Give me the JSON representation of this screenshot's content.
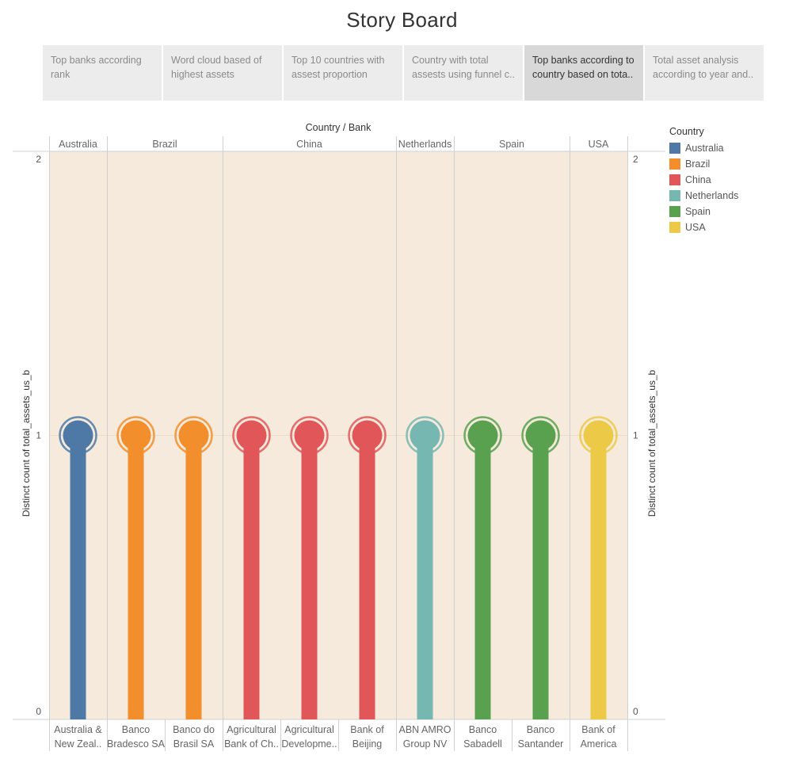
{
  "page": {
    "title": "Story Board"
  },
  "story_tabs": [
    {
      "line1": "Top banks according",
      "line2": "rank",
      "active": false
    },
    {
      "line1": "Word cloud based of",
      "line2": "highest assets",
      "active": false
    },
    {
      "line1": "Top 10 countries with",
      "line2": "assest proportion",
      "active": false
    },
    {
      "line1": "Country with total",
      "line2": "assests using funnel c..",
      "active": false
    },
    {
      "line1": "Top banks according to",
      "line2": "country based on tota..",
      "active": true
    },
    {
      "line1": "Total asset analysis",
      "line2": "according to year and..",
      "active": false
    }
  ],
  "legend": {
    "title": "Country",
    "items": [
      {
        "label": "Australia",
        "color": "#4e79a7"
      },
      {
        "label": "Brazil",
        "color": "#f28e2b"
      },
      {
        "label": "China",
        "color": "#e15759"
      },
      {
        "label": "Netherlands",
        "color": "#76b7b2"
      },
      {
        "label": "Spain",
        "color": "#59a14f"
      },
      {
        "label": "USA",
        "color": "#edc948"
      }
    ]
  },
  "chart_data": {
    "type": "bar",
    "style": "lollipop",
    "header_label": "Country / Bank",
    "ylabel": "Distinct count of total_assets_us_b",
    "ylim": [
      0,
      2
    ],
    "yticks": [
      0,
      1,
      2
    ],
    "background": "#f5eadb",
    "groups": [
      {
        "country": "Australia",
        "color": "#4e79a7",
        "banks": [
          {
            "line1": "Australia &",
            "line2": "New Zeal..",
            "value": 1
          }
        ]
      },
      {
        "country": "Brazil",
        "color": "#f28e2b",
        "banks": [
          {
            "line1": "Banco",
            "line2": "Bradesco SA",
            "value": 1
          },
          {
            "line1": "Banco do",
            "line2": "Brasil SA",
            "value": 1
          }
        ]
      },
      {
        "country": "China",
        "color": "#e15759",
        "banks": [
          {
            "line1": "Agricultural",
            "line2": "Bank of Ch..",
            "value": 1
          },
          {
            "line1": "Agricultural",
            "line2": "Developme..",
            "value": 1
          },
          {
            "line1": "Bank of",
            "line2": "Beijing",
            "value": 1
          }
        ]
      },
      {
        "country": "Netherlands",
        "color": "#76b7b2",
        "banks": [
          {
            "line1": "ABN AMRO",
            "line2": "Group NV",
            "value": 1
          }
        ]
      },
      {
        "country": "Spain",
        "color": "#59a14f",
        "banks": [
          {
            "line1": "Banco",
            "line2": "Sabadell",
            "value": 1
          },
          {
            "line1": "Banco",
            "line2": "Santander",
            "value": 1
          }
        ]
      },
      {
        "country": "USA",
        "color": "#edc948",
        "banks": [
          {
            "line1": "Bank of",
            "line2": "America",
            "value": 1
          }
        ]
      }
    ]
  }
}
